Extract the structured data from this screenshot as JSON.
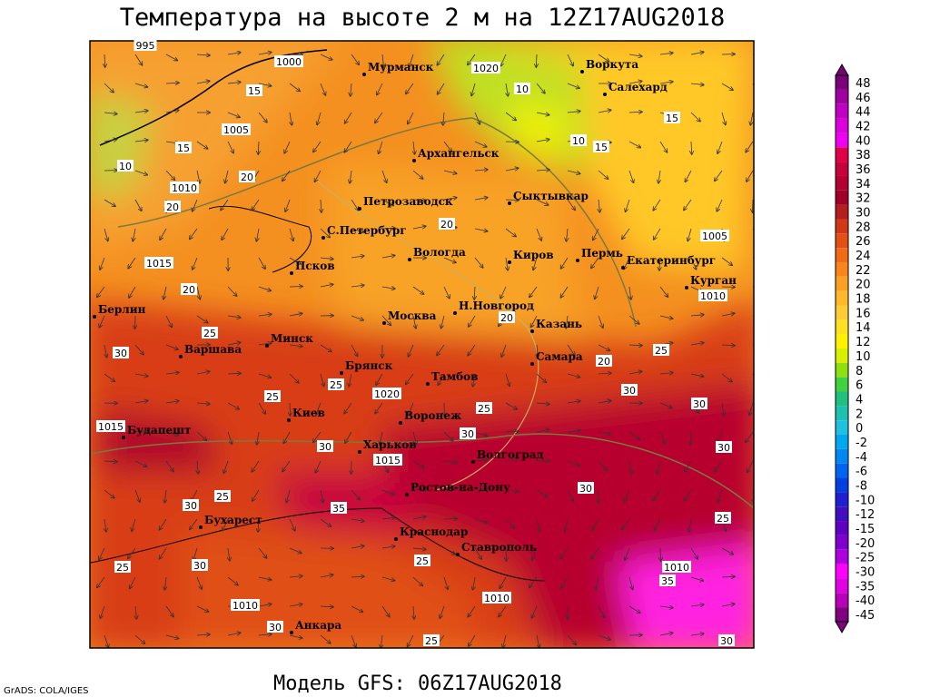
{
  "header": {
    "title": "Температура на высоте 2 м на 12Z17AUG2018"
  },
  "footer": {
    "model": "Модель GFS: 06Z17AUG2018",
    "credit": "GrADS: COLA/IGES"
  },
  "colorbar": [
    {
      "label": "48",
      "color": "#7a007a"
    },
    {
      "label": "46",
      "color": "#a000a0"
    },
    {
      "label": "44",
      "color": "#c000c0"
    },
    {
      "label": "42",
      "color": "#dc00dc"
    },
    {
      "label": "40",
      "color": "#f000f0"
    },
    {
      "label": "38",
      "color": "#e0004a"
    },
    {
      "label": "36",
      "color": "#c8003c"
    },
    {
      "label": "34",
      "color": "#b40030"
    },
    {
      "label": "32",
      "color": "#a00028"
    },
    {
      "label": "30",
      "color": "#b41e1e"
    },
    {
      "label": "28",
      "color": "#d03818"
    },
    {
      "label": "26",
      "color": "#e45014"
    },
    {
      "label": "24",
      "color": "#f06a18"
    },
    {
      "label": "22",
      "color": "#f8861c"
    },
    {
      "label": "20",
      "color": "#fca024"
    },
    {
      "label": "18",
      "color": "#ffb82c"
    },
    {
      "label": "16",
      "color": "#ffcc38"
    },
    {
      "label": "14",
      "color": "#ffe020"
    },
    {
      "label": "12",
      "color": "#fff000"
    },
    {
      "label": "10",
      "color": "#d8f000"
    },
    {
      "label": "8",
      "color": "#90e010"
    },
    {
      "label": "6",
      "color": "#40d040"
    },
    {
      "label": "4",
      "color": "#20c080"
    },
    {
      "label": "2",
      "color": "#20c0b0"
    },
    {
      "label": "0",
      "color": "#20c0e0"
    },
    {
      "label": "-2",
      "color": "#00a8f0"
    },
    {
      "label": "-4",
      "color": "#0088f0"
    },
    {
      "label": "-6",
      "color": "#0064f0"
    },
    {
      "label": "-8",
      "color": "#0040e0"
    },
    {
      "label": "-10",
      "color": "#2020d0"
    },
    {
      "label": "-12",
      "color": "#4010c0"
    },
    {
      "label": "-15",
      "color": "#6000c0"
    },
    {
      "label": "-20",
      "color": "#8000d0"
    },
    {
      "label": "-25",
      "color": "#b000e0"
    },
    {
      "label": "-30",
      "color": "#ff00ff"
    },
    {
      "label": "-35",
      "color": "#e000e0"
    },
    {
      "label": "-40",
      "color": "#b800b8"
    },
    {
      "label": "-45",
      "color": "#800080"
    }
  ],
  "cities": [
    "Мурманск",
    "Воркута",
    "Салехард",
    "Архангельск",
    "Сыктывкар",
    "Петрозаводск",
    "С.Петербург",
    "Вологда",
    "Киров",
    "Пермь",
    "Екатеринбург",
    "Курган",
    "Псков",
    "Н.Новгород",
    "Берлин",
    "Москва",
    "Казань",
    "Минск",
    "Варшава",
    "Самара",
    "Брянск",
    "Тамбов",
    "Киев",
    "Воронеж",
    "Будапешт",
    "Харьков",
    "Волгоград",
    "Ростов-на-Дону",
    "Бухарест",
    "Краснодар",
    "Ставрополь",
    "Анкара"
  ],
  "contour_labels": [
    "995",
    "1000",
    "1020",
    "1005",
    "1010",
    "1015",
    "1005",
    "1010",
    "1020",
    "1015",
    "1015",
    "1010",
    "1010",
    "1010",
    "15",
    "10",
    "15",
    "10",
    "15",
    "20",
    "20",
    "20",
    "25",
    "30",
    "30",
    "30",
    "25",
    "30",
    "25",
    "25",
    "30",
    "35",
    "30",
    "25",
    "30",
    "25",
    "25",
    "25",
    "30",
    "25",
    "30",
    "20",
    "25",
    "30",
    "20",
    "20",
    "15",
    "10",
    "30",
    "35"
  ]
}
